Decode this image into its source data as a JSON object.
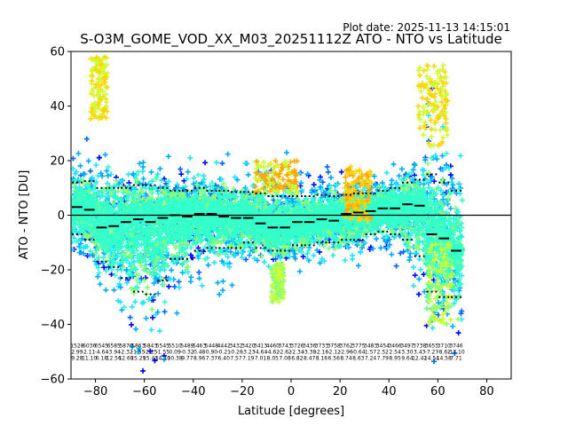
{
  "figure": {
    "plot_date": "Plot date: 2025-11-13 14:15:01",
    "title": "S-O3M_GOME_VOD_XX_M03_20251112Z ATO - NTO vs Latitude",
    "xlabel": "Latitude [degrees]",
    "ylabel": "ATO - NTO [DU]"
  },
  "chart_data": {
    "type": "scatter",
    "title": "S-O3M_GOME_VOD_XX_M03_20251112Z ATO - NTO vs Latitude",
    "xlabel": "Latitude [degrees]",
    "ylabel": "ATO - NTO [DU]",
    "xlim": [
      -90,
      90
    ],
    "ylim": [
      -60,
      60
    ],
    "xticks": [
      -80,
      -60,
      -40,
      -20,
      0,
      20,
      40,
      60,
      80
    ],
    "yticks": [
      -60,
      -40,
      -20,
      0,
      20,
      40,
      60
    ],
    "grid": false,
    "marker": "+",
    "reference_line_y": 0,
    "bin_width_deg": 5,
    "bin_centers": [
      -87.5,
      -82.5,
      -77.5,
      -72.5,
      -67.5,
      -62.5,
      -57.5,
      -52.5,
      -47.5,
      -42.5,
      -37.5,
      -32.5,
      -27.5,
      -22.5,
      -17.5,
      -12.5,
      -7.5,
      -2.5,
      2.5,
      7.5,
      12.5,
      17.5,
      22.5,
      27.5,
      32.5,
      37.5,
      42.5,
      47.5,
      52.5,
      57.5,
      62.5,
      67.5
    ],
    "bin_mean": [
      3,
      2,
      -4.5,
      -4,
      -2.5,
      -1.5,
      -2.5,
      -1,
      0,
      -0.5,
      0.5,
      0.5,
      -0.5,
      -1,
      -1,
      -3,
      -4.5,
      -4.5,
      -2.5,
      -2.5,
      -1.5,
      -2,
      0.5,
      1,
      1.5,
      2.5,
      2.5,
      4,
      3.5,
      -7,
      -8.5,
      -13
    ],
    "bin_plus_sigma": [
      12,
      12.5,
      10,
      10,
      10,
      11,
      11,
      10,
      9,
      9,
      10,
      9,
      9,
      8.5,
      8.5,
      8,
      7,
      7,
      7,
      7,
      7.5,
      7,
      7.5,
      8,
      8,
      9,
      10,
      12,
      13,
      15,
      12,
      9
    ],
    "bin_minus_sigma": [
      -7,
      -9,
      -17,
      -19,
      -23,
      -28,
      -29,
      -24,
      -16,
      -16,
      -13,
      -12,
      -12,
      -12,
      -10,
      -12,
      -13,
      -13,
      -11,
      -11,
      -10,
      -10,
      -9,
      -9,
      -7,
      -6,
      -7,
      -9,
      -15,
      -28,
      -30,
      -30
    ],
    "bin_labels": [
      [
        "1528",
        "2.99",
        "9.28"
      ],
      [
        "6036",
        "2.11",
        "11.10"
      ],
      [
        "6545",
        "-4.64",
        "6.18"
      ],
      [
        "6585",
        "-3.94",
        "12.56"
      ],
      [
        "5876",
        "-2.32",
        "12.60"
      ],
      [
        "5863",
        "-1.55",
        "15.29"
      ],
      [
        "5843",
        "-2.25",
        "15.43"
      ],
      [
        "5545",
        "-1.55",
        "14.10"
      ],
      [
        "5510",
        "0.09",
        "10.38"
      ],
      [
        "5489",
        "-0.32",
        "9.77"
      ],
      [
        "5463",
        "0.48",
        "8.96"
      ],
      [
        "5448",
        "0.90",
        "7.37"
      ],
      [
        "4442",
        "-0.21",
        "6.40"
      ],
      [
        "3432",
        "-0.26",
        "7.57"
      ],
      [
        "3420",
        "-3.23",
        "7.19"
      ],
      [
        "3413",
        "-4.64",
        "7.01"
      ],
      [
        "4460",
        "-4.62",
        "8.05"
      ],
      [
        "3743",
        "-2.62",
        "7.08"
      ],
      [
        "3726",
        "-2.34",
        "6.82"
      ],
      [
        "3436",
        "-3.38",
        "8.47"
      ],
      [
        "3733",
        "-2.16",
        "8.16"
      ],
      [
        "3758",
        "-2.12",
        "6.56"
      ],
      [
        "3762",
        "-2.96",
        "8.74"
      ],
      [
        "3775",
        "-0.64",
        "8.63"
      ],
      [
        "3483",
        "1.57",
        "7.24"
      ],
      [
        "3454",
        "2.52",
        "7.79"
      ],
      [
        "3466",
        "2.54",
        "8.95"
      ],
      [
        "3497",
        "3.30",
        "9.64"
      ],
      [
        "3738",
        "3.43",
        "12.42"
      ],
      [
        "3655",
        "-7.27",
        "14.54"
      ],
      [
        "3710",
        "-8.62",
        "14.58"
      ],
      [
        "3746",
        "-13.10",
        "7.71"
      ]
    ],
    "scatter_color_scale": "point density: blue (low) - cyan - green - yellow - orange (high)"
  }
}
